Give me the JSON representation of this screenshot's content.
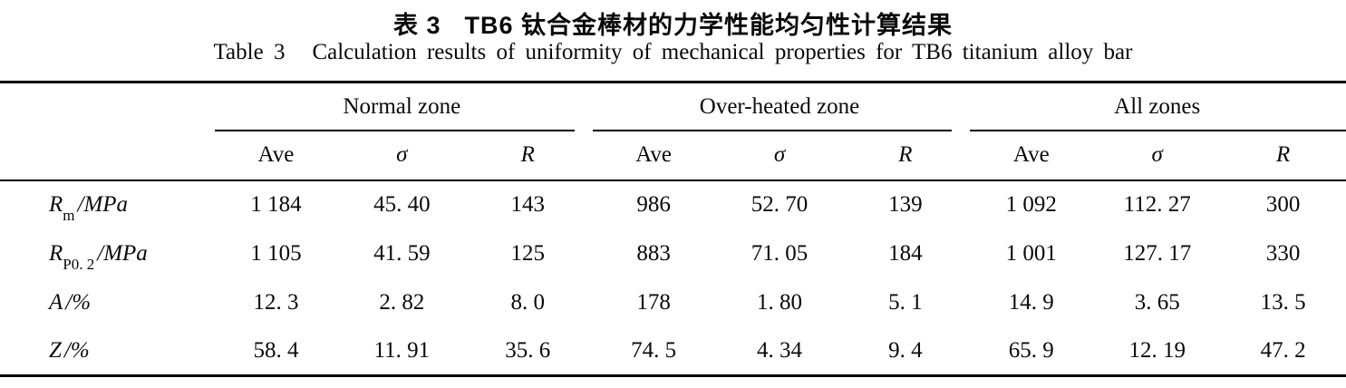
{
  "titles": {
    "chinese_label": "表 3",
    "chinese_text": "TB6 钛合金棒材的力学性能均匀性计算结果",
    "english_label": "Table 3",
    "english_text": "Calculation results of uniformity of mechanical properties for TB6 titanium alloy bar"
  },
  "table": {
    "groups": [
      {
        "label": "Normal zone",
        "columns": [
          "Ave",
          "σ",
          "R"
        ]
      },
      {
        "label": "Over-heated zone",
        "columns": [
          "Ave",
          "σ",
          "R"
        ]
      },
      {
        "label": "All zones",
        "columns": [
          "Ave",
          "σ",
          "R"
        ]
      }
    ],
    "rows": [
      {
        "symbol": "R",
        "subscript": "m",
        "unit": "/MPa",
        "values": [
          "1 184",
          "45. 40",
          "143",
          "986",
          "52. 70",
          "139",
          "1 092",
          "112. 27",
          "300"
        ]
      },
      {
        "symbol": "R",
        "subscript": "P0. 2",
        "unit": "/MPa",
        "values": [
          "1 105",
          "41. 59",
          "125",
          "883",
          "71. 05",
          "184",
          "1 001",
          "127. 17",
          "330"
        ]
      },
      {
        "symbol": "A",
        "subscript": "",
        "unit": "/%",
        "values": [
          "12. 3",
          "2. 82",
          "8. 0",
          "178",
          "1. 80",
          "5. 1",
          "14. 9",
          "3. 65",
          "13. 5"
        ]
      },
      {
        "symbol": "Z",
        "subscript": "",
        "unit": "/%",
        "values": [
          "58. 4",
          "11. 91",
          "35. 6",
          "74. 5",
          "4. 34",
          "9. 4",
          "65. 9",
          "12. 19",
          "47. 2"
        ]
      }
    ]
  },
  "chart_data": {
    "type": "table",
    "title": "Table 3 Calculation results of uniformity of mechanical properties for TB6 titanium alloy bar",
    "column_groups": [
      "Normal zone",
      "Over-heated zone",
      "All zones"
    ],
    "sub_columns": [
      "Ave",
      "σ",
      "R"
    ],
    "row_labels": [
      "Rm/MPa",
      "RP0.2/MPa",
      "A/%",
      "Z/%"
    ],
    "values": [
      [
        1184,
        45.4,
        143,
        986,
        52.7,
        139,
        1092,
        112.27,
        300
      ],
      [
        1105,
        41.59,
        125,
        883,
        71.05,
        184,
        1001,
        127.17,
        330
      ],
      [
        12.3,
        2.82,
        8.0,
        178,
        1.8,
        5.1,
        14.9,
        3.65,
        13.5
      ],
      [
        58.4,
        11.91,
        35.6,
        74.5,
        4.34,
        9.4,
        65.9,
        12.19,
        47.2
      ]
    ]
  }
}
